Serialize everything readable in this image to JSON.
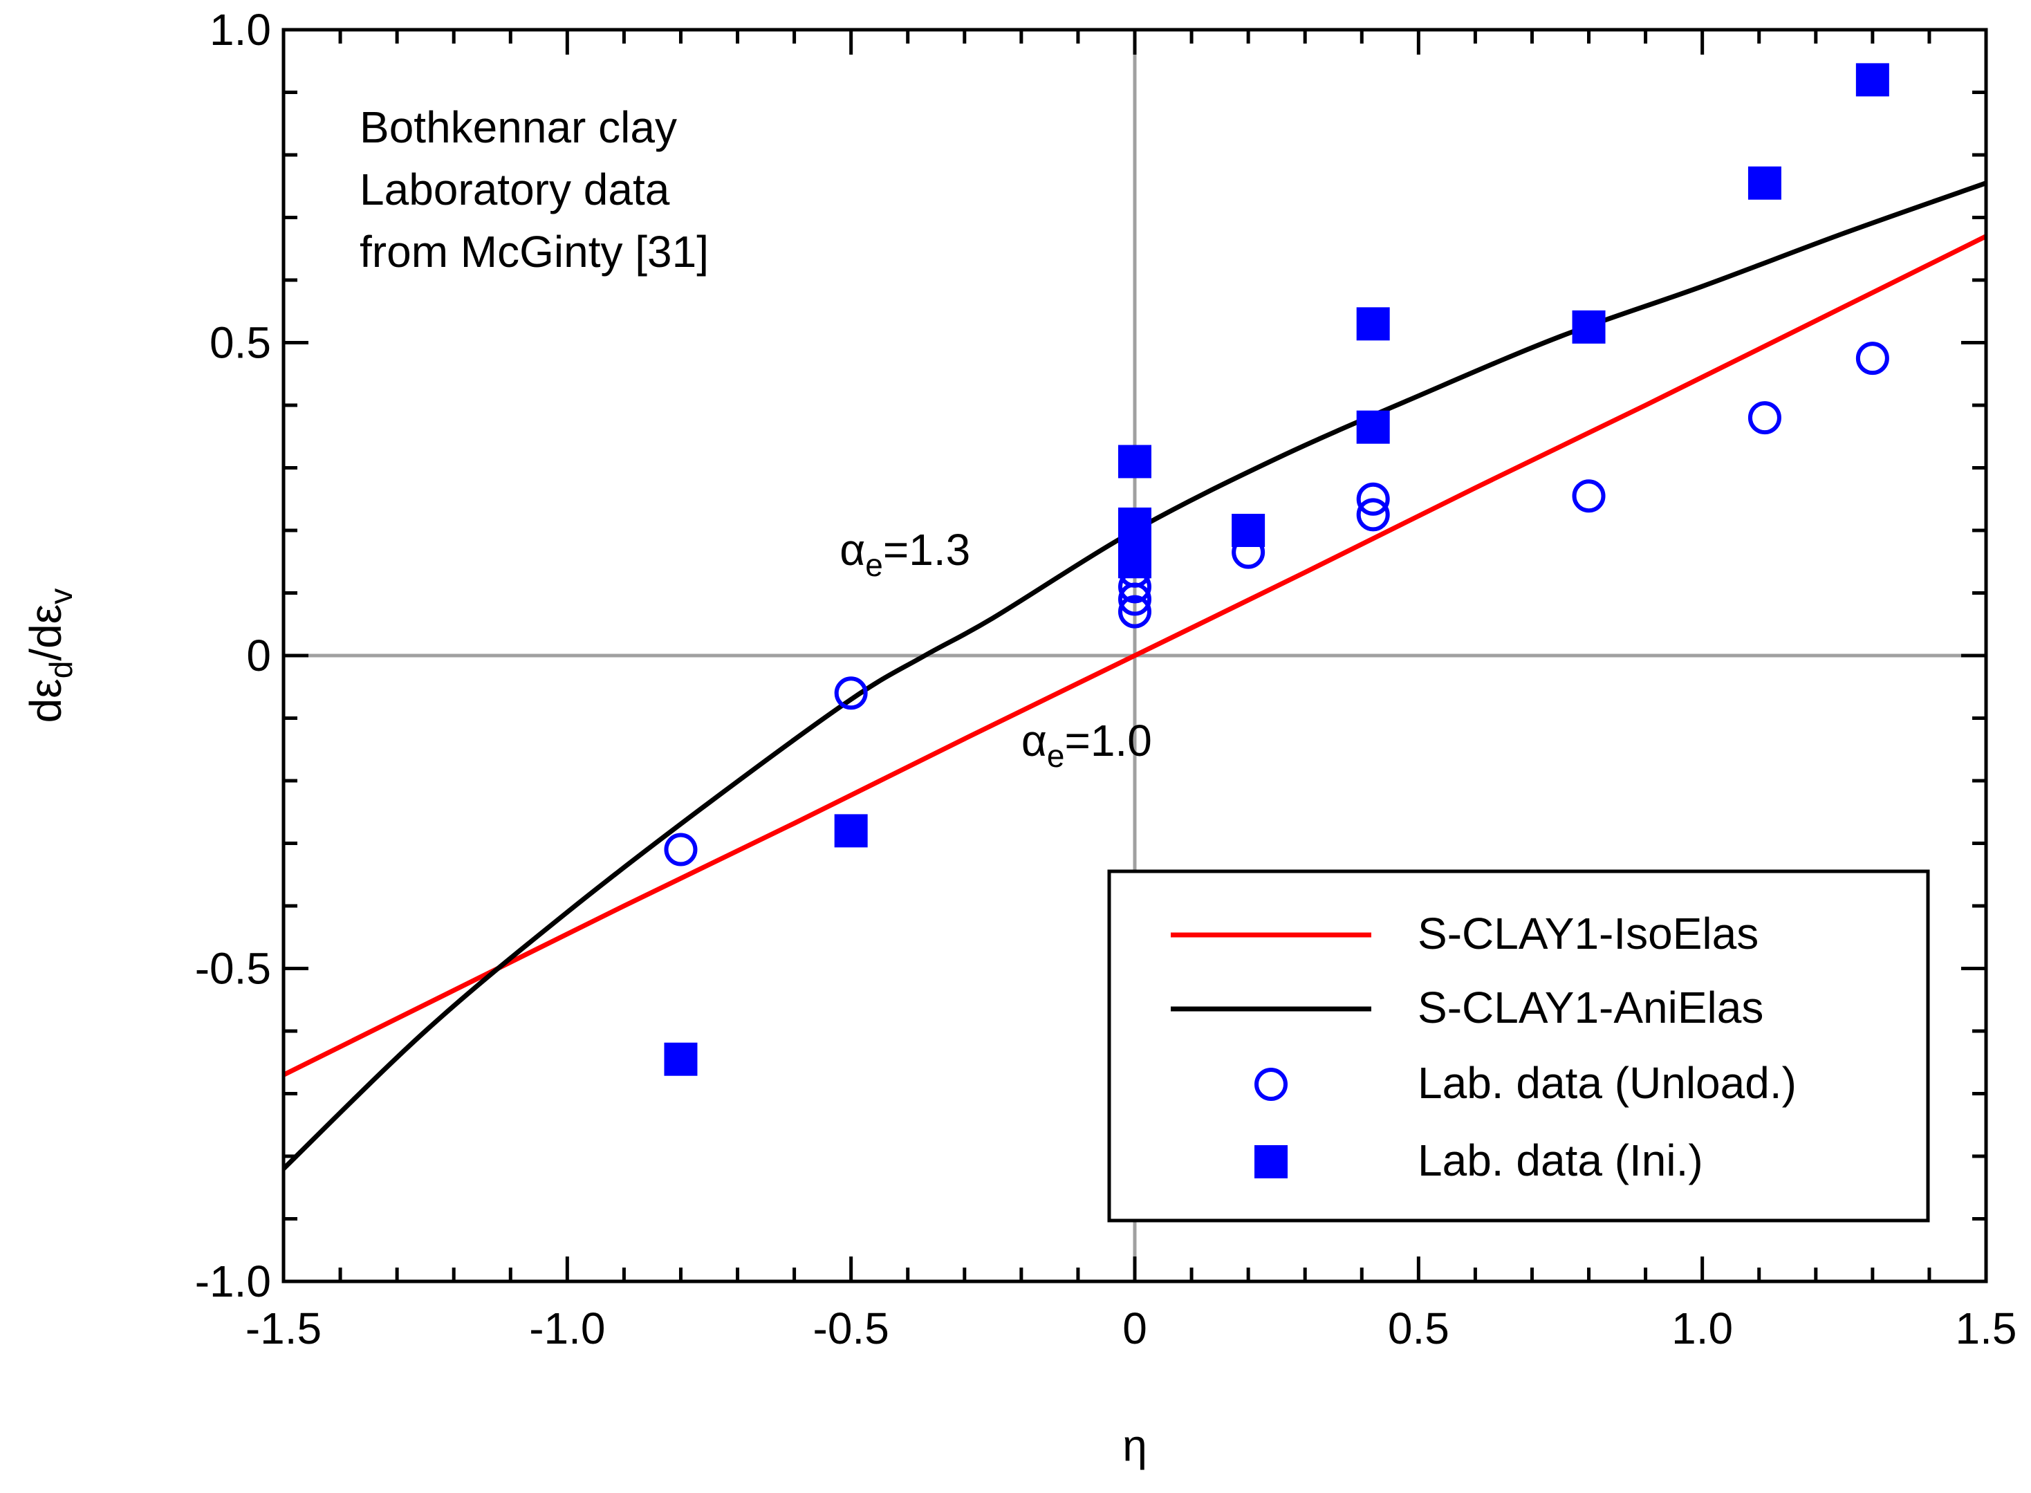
{
  "chart_data": {
    "type": "scatter",
    "title": "",
    "xlabel": "η",
    "ylabel": {
      "base": "dε",
      "sub1": "d",
      "mid": "/dε",
      "sub2": "v"
    },
    "xlim": [
      -1.5,
      1.5
    ],
    "ylim": [
      -1.0,
      1.0
    ],
    "x_ticks": [
      {
        "value": -1.5,
        "label": "-1.5"
      },
      {
        "value": -1.0,
        "label": "-1.0"
      },
      {
        "value": -0.5,
        "label": "-0.5"
      },
      {
        "value": 0,
        "label": "0"
      },
      {
        "value": 0.5,
        "label": "0.5"
      },
      {
        "value": 1.0,
        "label": "1.0"
      },
      {
        "value": 1.5,
        "label": "1.5"
      }
    ],
    "y_ticks": [
      {
        "value": -1.0,
        "label": "-1.0"
      },
      {
        "value": -0.5,
        "label": "-0.5"
      },
      {
        "value": 0,
        "label": "0"
      },
      {
        "value": 0.5,
        "label": "0.5"
      },
      {
        "value": 1.0,
        "label": "1.0"
      }
    ],
    "grid": false,
    "reference_lines": {
      "x": 0,
      "y": 0,
      "color": "#a0a0a0"
    },
    "text_block": [
      "Bothkennar clay",
      "Laboratory data",
      "from McGinty [31]"
    ],
    "annotations": [
      {
        "id": "alpha13",
        "symbol": "α",
        "sub": "e",
        "value": "=1.3",
        "x": -0.52,
        "y": 0.145
      },
      {
        "id": "alpha10",
        "symbol": "α",
        "sub": "e",
        "value": "=1.0",
        "x": -0.2,
        "y": -0.16
      }
    ],
    "legend": {
      "position": "bottom-right",
      "entries": [
        {
          "label": "S-CLAY1-IsoElas",
          "kind": "line",
          "color": "#ff0000"
        },
        {
          "label": "S-CLAY1-AniElas",
          "kind": "line",
          "color": "#000000"
        },
        {
          "label": "Lab. data (Unload.)",
          "kind": "open-circle",
          "color": "#0000ff"
        },
        {
          "label": "Lab. data (Ini.)",
          "kind": "filled-square",
          "color": "#0000ff"
        }
      ]
    },
    "series": [
      {
        "name": "S-CLAY1-IsoElas",
        "type": "line",
        "color": "#ff0000",
        "points": [
          [
            -1.5,
            -0.67
          ],
          [
            -1.2,
            -0.535
          ],
          [
            -0.9,
            -0.4
          ],
          [
            -0.6,
            -0.268
          ],
          [
            -0.3,
            -0.133
          ],
          [
            0,
            0
          ],
          [
            0.3,
            0.133
          ],
          [
            0.6,
            0.268
          ],
          [
            0.9,
            0.4
          ],
          [
            1.2,
            0.535
          ],
          [
            1.5,
            0.67
          ]
        ]
      },
      {
        "name": "S-CLAY1-AniElas",
        "type": "line",
        "color": "#000000",
        "points": [
          [
            -1.5,
            -0.82
          ],
          [
            -1.25,
            -0.6
          ],
          [
            -1.0,
            -0.41
          ],
          [
            -0.75,
            -0.235
          ],
          [
            -0.5,
            -0.07
          ],
          [
            -0.37,
            0.0
          ],
          [
            -0.25,
            0.06
          ],
          [
            0,
            0.2
          ],
          [
            0.25,
            0.315
          ],
          [
            0.5,
            0.415
          ],
          [
            0.75,
            0.51
          ],
          [
            1.0,
            0.59
          ],
          [
            1.25,
            0.675
          ],
          [
            1.5,
            0.755
          ]
        ]
      },
      {
        "name": "Lab. data (Unload.)",
        "type": "scatter",
        "marker": "open-circle",
        "color": "#0000ff",
        "points": [
          [
            -0.8,
            -0.31
          ],
          [
            -0.5,
            -0.06
          ],
          [
            0,
            0.07
          ],
          [
            0,
            0.09
          ],
          [
            0,
            0.11
          ],
          [
            0,
            0.135
          ],
          [
            0,
            0.16
          ],
          [
            0,
            0.18
          ],
          [
            0.2,
            0.165
          ],
          [
            0.42,
            0.25
          ],
          [
            0.42,
            0.225
          ],
          [
            0.8,
            0.255
          ],
          [
            1.11,
            0.38
          ],
          [
            1.3,
            0.475
          ]
        ]
      },
      {
        "name": "Lab. data (Ini.)",
        "type": "scatter",
        "marker": "filled-square",
        "color": "#0000ff",
        "points": [
          [
            -0.8,
            -0.645
          ],
          [
            -0.5,
            -0.28
          ],
          [
            0,
            0.31
          ],
          [
            0,
            0.21
          ],
          [
            0,
            0.19
          ],
          [
            0,
            0.17
          ],
          [
            0,
            0.15
          ],
          [
            0.2,
            0.2
          ],
          [
            0.42,
            0.53
          ],
          [
            0.42,
            0.365
          ],
          [
            0.8,
            0.525
          ],
          [
            1.11,
            0.755
          ],
          [
            1.3,
            0.92
          ]
        ]
      }
    ]
  }
}
